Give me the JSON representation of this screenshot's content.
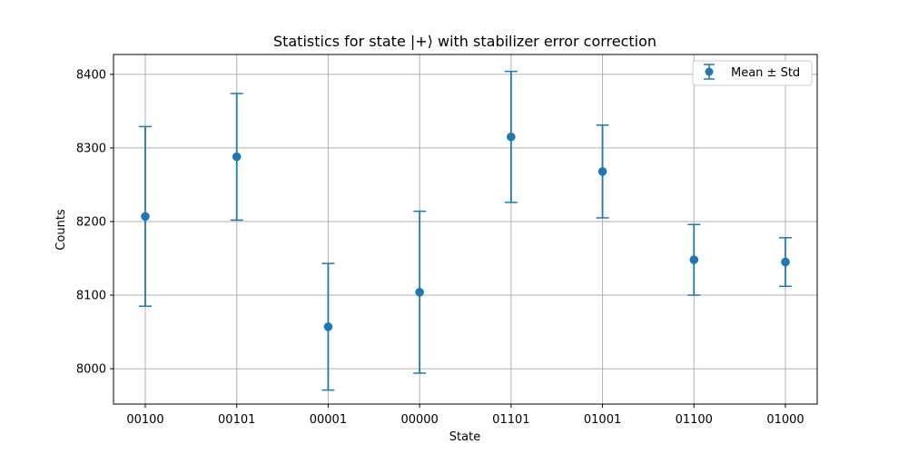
{
  "chart_data": {
    "type": "scatter",
    "title": "Statistics for state |+⟩ with stabilizer error correction",
    "xlabel": "State",
    "ylabel": "Counts",
    "categories": [
      "00100",
      "00101",
      "00001",
      "00000",
      "01101",
      "01001",
      "01100",
      "01000"
    ],
    "series": [
      {
        "name": "Mean ± Std",
        "mean": [
          8207,
          8288,
          8057,
          8104,
          8315,
          8268,
          8148,
          8145
        ],
        "std": [
          122,
          86,
          86,
          110,
          89,
          63,
          48,
          33
        ]
      }
    ],
    "yticks": [
      8000,
      8100,
      8200,
      8300,
      8400
    ],
    "ylim": [
      7952,
      8427
    ],
    "grid": true,
    "legend_position": "top-right",
    "color": "#1f77b4"
  }
}
